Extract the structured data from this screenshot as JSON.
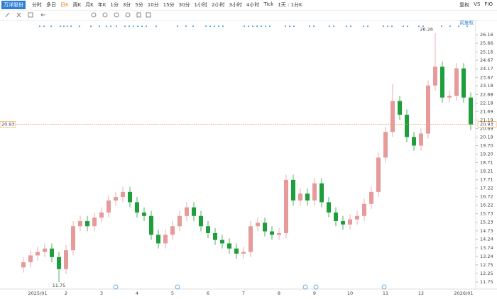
{
  "toolbar": {
    "stock": "万洋股份",
    "periods": [
      "分时",
      "多日",
      "日K",
      "周K",
      "月K",
      "年K",
      "1分",
      "3分",
      "5分",
      "10分",
      "15分",
      "30分",
      "1小时",
      "2小时",
      "3小时",
      "4小时",
      "Tick",
      "1天 : 1分K"
    ],
    "right": [
      "复权",
      "VS",
      "FIO"
    ]
  },
  "chart_data": {
    "type": "candlestick",
    "adjust_label": "前复权",
    "categories": [
      null,
      null,
      "2025/01",
      null,
      null,
      null,
      "2",
      null,
      null,
      null,
      null,
      "3",
      null,
      null,
      null,
      null,
      "4",
      null,
      null,
      null,
      null,
      "5",
      null,
      null,
      null,
      null,
      "6",
      null,
      null,
      null,
      null,
      "7",
      null,
      null,
      null,
      null,
      "8",
      null,
      null,
      null,
      null,
      "9",
      null,
      null,
      null,
      null,
      "10",
      null,
      null,
      null,
      null,
      "11",
      null,
      null,
      null,
      null,
      "12",
      null,
      null,
      null,
      null,
      null,
      "2026/01",
      null
    ],
    "open": [
      12.6,
      12.9,
      13.3,
      13.5,
      13.7,
      13.2,
      12.5,
      13.6,
      15.0,
      15.3,
      15.0,
      15.5,
      15.8,
      16.5,
      16.7,
      17.0,
      16.4,
      15.8,
      15.6,
      14.5,
      14.0,
      14.5,
      15.0,
      15.6,
      16.1,
      15.6,
      15.0,
      14.6,
      14.2,
      14.0,
      13.7,
      13.4,
      13.5,
      15.0,
      15.2,
      14.7,
      14.5,
      14.6,
      17.7,
      16.5,
      16.9,
      16.5,
      17.5,
      16.4,
      15.8,
      15.3,
      15.1,
      15.4,
      15.6,
      16.3,
      17.0,
      19.0,
      20.5,
      22.3,
      21.5,
      20.2,
      19.7,
      20.4,
      23.2,
      24.3,
      22.5,
      22.6,
      24.2,
      22.5
    ],
    "high": [
      13.2,
      13.6,
      13.8,
      14.0,
      14.0,
      13.5,
      13.9,
      15.3,
      15.6,
      15.6,
      15.8,
      16.1,
      16.8,
      17.0,
      17.3,
      17.3,
      16.7,
      16.1,
      15.9,
      14.8,
      14.8,
      15.3,
      15.9,
      16.4,
      16.4,
      15.9,
      15.3,
      14.9,
      14.5,
      14.3,
      14.0,
      13.8,
      15.3,
      15.5,
      15.5,
      15.0,
      14.9,
      18.0,
      18.0,
      17.2,
      17.2,
      17.8,
      17.8,
      16.7,
      16.1,
      15.6,
      15.7,
      15.9,
      16.6,
      17.3,
      19.3,
      20.8,
      23.3,
      22.6,
      21.8,
      20.5,
      20.7,
      23.5,
      26.26,
      24.6,
      22.9,
      24.5,
      24.5,
      22.8
    ],
    "low": [
      12.3,
      12.6,
      13.0,
      13.2,
      12.9,
      11.75,
      12.2,
      13.3,
      14.7,
      14.7,
      14.7,
      15.2,
      15.5,
      16.2,
      16.4,
      16.1,
      15.5,
      15.3,
      14.2,
      13.7,
      13.7,
      14.2,
      14.7,
      15.3,
      15.3,
      14.7,
      14.3,
      13.9,
      13.7,
      13.4,
      13.1,
      13.1,
      13.2,
      14.7,
      14.4,
      14.2,
      14.2,
      14.3,
      16.2,
      16.2,
      16.2,
      16.2,
      16.1,
      15.5,
      15.0,
      14.8,
      14.8,
      15.1,
      15.3,
      16.0,
      16.7,
      18.7,
      20.2,
      21.2,
      19.9,
      19.4,
      19.4,
      20.1,
      22.9,
      22.2,
      22.2,
      22.3,
      22.2,
      20.6
    ],
    "close": [
      12.9,
      13.3,
      13.5,
      13.7,
      13.2,
      12.5,
      13.6,
      15.0,
      15.3,
      15.0,
      15.5,
      15.8,
      16.5,
      16.7,
      17.0,
      16.4,
      15.8,
      15.6,
      14.5,
      14.0,
      14.5,
      15.0,
      15.6,
      16.1,
      15.6,
      15.0,
      14.6,
      14.2,
      14.0,
      13.7,
      13.4,
      13.5,
      15.0,
      15.2,
      14.7,
      14.5,
      14.6,
      17.7,
      16.5,
      16.9,
      16.5,
      17.5,
      16.4,
      15.8,
      15.3,
      15.1,
      15.4,
      15.6,
      16.3,
      17.0,
      19.0,
      20.5,
      22.3,
      21.5,
      20.2,
      19.7,
      20.4,
      23.2,
      24.3,
      22.5,
      22.6,
      24.2,
      22.5,
      20.93
    ],
    "up_color": "#e79a9a",
    "down_color": "#1f9e3c",
    "last_price": 20.93,
    "last_price_color": "#f0a050",
    "high_label": 26.26,
    "low_label": 11.75,
    "ylim": [
      11.46,
      26.41
    ],
    "yticks": [
      11.75,
      12.25,
      12.75,
      13.24,
      13.74,
      14.24,
      14.73,
      15.23,
      15.73,
      16.22,
      16.72,
      17.22,
      17.71,
      18.21,
      18.71,
      {
        "value": 19.2,
        "label": "19.20"
      },
      {
        "value": 19.7,
        "label": "19.70"
      },
      20.19,
      20.69,
      21.19,
      21.69,
      22.18,
      22.68,
      23.18,
      23.67,
      24.17,
      24.67,
      25.16,
      25.66,
      26.16
    ]
  }
}
